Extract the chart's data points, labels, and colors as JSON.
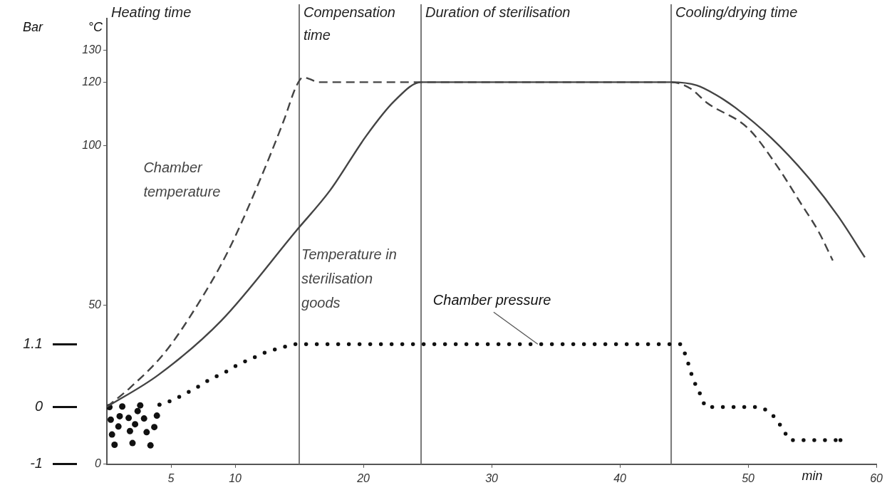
{
  "chart_data": {
    "type": "line",
    "xlabel": "min",
    "ylabel": "°C",
    "y2label": "Bar",
    "xlim": [
      0,
      60
    ],
    "xticks": [
      5,
      10,
      20,
      30,
      40,
      50,
      60
    ],
    "ylim": [
      0,
      140
    ],
    "yticks": [
      0,
      50,
      100,
      120,
      130
    ],
    "y2lim": [
      -1,
      6.8
    ],
    "y2ticks": [
      -1,
      0,
      1.1
    ],
    "ref_lines": [
      {
        "axis": "x",
        "value": 15,
        "color": "#777777"
      },
      {
        "axis": "x",
        "value": 24.5,
        "color": "#777777"
      },
      {
        "axis": "x",
        "value": 44,
        "color": "#777777"
      }
    ],
    "annotations": [
      "Heating time",
      "Compensation time",
      "Duration of sterilisation",
      "Cooling/drying time"
    ],
    "series": [
      {
        "name": "Chamber temperature",
        "type": "line",
        "line_style": "dashed",
        "color": "#444444",
        "x": [
          0,
          1.8,
          4.5,
          6.9,
          9.4,
          11.8,
          13.8,
          14.8,
          15.3,
          15.8,
          16.5,
          24.5,
          44,
          45.5,
          46.8,
          50,
          52.2,
          54.1,
          55.5,
          56.6
        ],
        "values": [
          18,
          24,
          35,
          49,
          66.5,
          88,
          108,
          119,
          121.5,
          121,
          120,
          120,
          120,
          118,
          113.5,
          105.5,
          94,
          82,
          73,
          64
        ]
      },
      {
        "name": "Temperature in sterilisation goods",
        "type": "line",
        "line_style": "solid",
        "color": "#444444",
        "x": [
          0,
          4,
          8.9,
          14.8,
          17.4,
          20.2,
          22.4,
          24.5,
          44,
          46,
          47.5,
          49,
          51.8,
          54.6,
          57,
          59.1
        ],
        "values": [
          18,
          28,
          45,
          73.5,
          86,
          103,
          114,
          120,
          120,
          119,
          116,
          112,
          102.5,
          90.5,
          78,
          65
        ]
      },
      {
        "name": "Chamber pressure",
        "type": "line",
        "line_style": "dotted",
        "axis": "y2",
        "color": "#111111",
        "x": [
          4.1,
          5,
          6,
          7,
          8.1,
          9.3,
          10.2,
          11.3,
          12.4,
          13.5,
          14.7,
          44.7,
          45.2,
          45.7,
          46.4,
          46.7,
          50.7,
          51.7,
          52.3,
          52.8,
          53.3,
          57.2
        ],
        "values": [
          0.04,
          0.11,
          0.22,
          0.34,
          0.49,
          0.62,
          0.74,
          0.85,
          0.96,
          1.03,
          1.1,
          1.1,
          0.85,
          0.5,
          0.16,
          0,
          0,
          -0.1,
          -0.25,
          -0.42,
          -0.58,
          -0.58
        ]
      },
      {
        "type": "scatter",
        "marker": "circle",
        "axis": "y2",
        "color": "#111111",
        "x": [
          0.2,
          0.3,
          0.4,
          0.6,
          0.9,
          1,
          1.2,
          1.7,
          1.8,
          2,
          2.2,
          2.4,
          2.6,
          2.9,
          3.1,
          3.4,
          3.7,
          3.9
        ],
        "values": [
          0,
          -0.22,
          -0.48,
          -0.66,
          -0.34,
          -0.16,
          0.01,
          -0.19,
          -0.42,
          -0.63,
          -0.3,
          -0.07,
          0.03,
          -0.2,
          -0.44,
          -0.67,
          -0.35,
          -0.15
        ]
      }
    ]
  }
}
